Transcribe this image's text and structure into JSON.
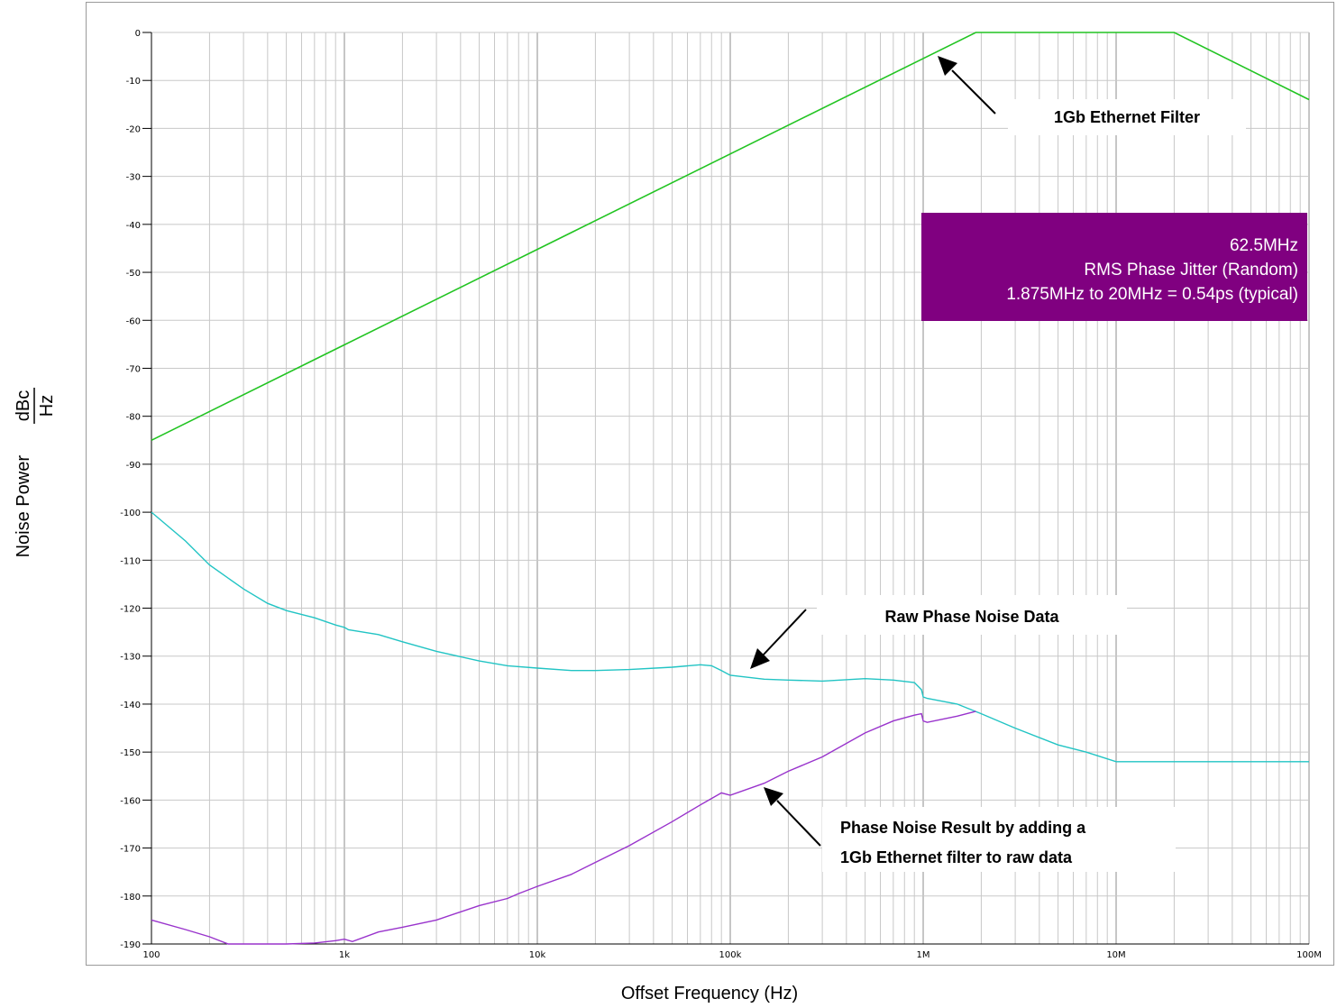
{
  "chart_data": {
    "type": "line",
    "xlabel": "Offset Frequency (Hz)",
    "ylabel": "Noise Power",
    "yunit_num": "dBc",
    "yunit_den": "Hz",
    "xscale": "log",
    "xlim": [
      100,
      100000000
    ],
    "ylim": [
      -190,
      0
    ],
    "grid": true,
    "xticks": [
      {
        "value": 100,
        "label": "100"
      },
      {
        "value": 1000,
        "label": "1k"
      },
      {
        "value": 10000,
        "label": "10k"
      },
      {
        "value": 100000,
        "label": "100k"
      },
      {
        "value": 1000000,
        "label": "1M"
      },
      {
        "value": 10000000,
        "label": "10M"
      },
      {
        "value": 100000000,
        "label": "100M"
      }
    ],
    "yticks": [
      0,
      -10,
      -20,
      -30,
      -40,
      -50,
      -60,
      -70,
      -80,
      -90,
      -100,
      -110,
      -120,
      -130,
      -140,
      -150,
      -160,
      -170,
      -180,
      -190
    ],
    "series": [
      {
        "key": "filter",
        "color": "#22c422",
        "x": [
          100,
          1875000,
          20000000,
          100000000
        ],
        "y": [
          -85,
          0,
          0,
          -14
        ]
      },
      {
        "key": "raw",
        "color": "#22c4c4",
        "x": [
          100,
          150,
          200,
          300,
          400,
          500,
          700,
          900,
          1000,
          1050,
          1500,
          2000,
          3000,
          5000,
          7000,
          10000,
          15000,
          20000,
          30000,
          50000,
          70000,
          80000,
          90000,
          100000,
          150000,
          200000,
          300000,
          500000,
          700000,
          900000,
          980000,
          1000000,
          1050000,
          1500000,
          2000000,
          3000000,
          5000000,
          7000000,
          10000000,
          100000000
        ],
        "y": [
          -100,
          -106,
          -111,
          -116,
          -119,
          -120.5,
          -122,
          -123.5,
          -124,
          -124.5,
          -125.5,
          -127,
          -129,
          -131,
          -132,
          -132.5,
          -133,
          -133,
          -132.8,
          -132.3,
          -131.8,
          -132,
          -133,
          -134,
          -134.8,
          -135,
          -135.2,
          -134.7,
          -135,
          -135.5,
          -137,
          -138.5,
          -138.8,
          -140,
          -142,
          -145,
          -148.5,
          -150,
          -152,
          -152
        ]
      },
      {
        "key": "result",
        "color": "#9933cc",
        "x": [
          100,
          150,
          200,
          250,
          500,
          700,
          900,
          1000,
          1100,
          1500,
          2000,
          3000,
          5000,
          7000,
          8000,
          10000,
          15000,
          20000,
          30000,
          50000,
          70000,
          90000,
          100000,
          150000,
          200000,
          300000,
          500000,
          700000,
          900000,
          980000,
          1000000,
          1050000,
          1500000,
          1875000
        ],
        "y": [
          -185,
          -187,
          -188.5,
          -190,
          -190,
          -189.8,
          -189.3,
          -189,
          -189.5,
          -187.5,
          -186.5,
          -185,
          -182,
          -180.5,
          -179.5,
          -178,
          -175.5,
          -173,
          -169.5,
          -164.5,
          -161,
          -158.5,
          -159,
          -156.5,
          -154,
          -151,
          -146,
          -143.5,
          -142.3,
          -142,
          -143.5,
          -143.8,
          -142.5,
          -141.5
        ]
      }
    ],
    "annotations": {
      "filter_label": "1Gb Ethernet Filter",
      "raw_label": "Raw Phase Noise Data",
      "result_label_1": "Phase Noise Result by adding a",
      "result_label_2": "1Gb Ethernet filter to raw data",
      "jitter_line_1": "62.5MHz",
      "jitter_line_2": "RMS Phase Jitter (Random)",
      "jitter_line_3": "1.875MHz to 20MHz = 0.54ps (typical)",
      "jitter_box_color": "#800080"
    }
  }
}
